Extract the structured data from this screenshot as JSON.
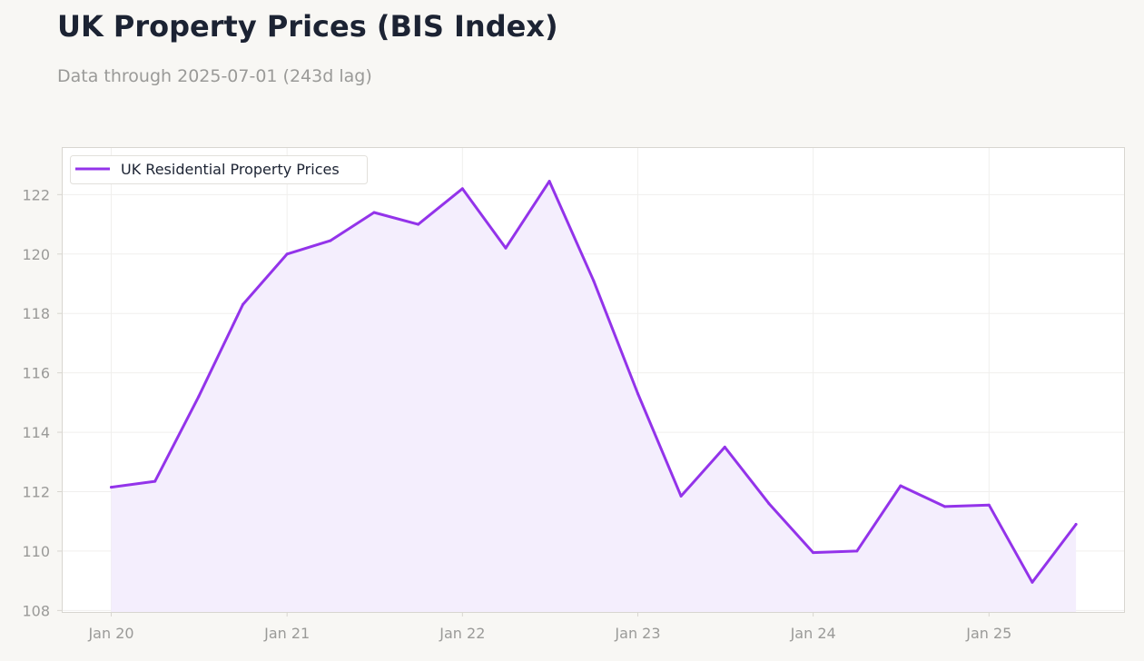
{
  "page": {
    "title": "UK Property Prices (BIS Index)",
    "subtitle": "Data through 2025-07-01 (243d lag)"
  },
  "chart_data": {
    "type": "area",
    "title": "UK Property Prices (BIS Index)",
    "subtitle": "Data through 2025-07-01 (243d lag)",
    "xlabel": "",
    "ylabel": "",
    "x": [
      "2020-01-01",
      "2020-04-01",
      "2020-07-01",
      "2020-10-01",
      "2021-01-01",
      "2021-04-01",
      "2021-07-01",
      "2021-10-01",
      "2022-01-01",
      "2022-04-01",
      "2022-07-01",
      "2022-10-01",
      "2023-01-01",
      "2023-04-01",
      "2023-07-01",
      "2023-10-01",
      "2024-01-01",
      "2024-04-01",
      "2024-07-01",
      "2024-10-01",
      "2025-01-01",
      "2025-04-01",
      "2025-07-01"
    ],
    "series": [
      {
        "name": "UK Residential Property Prices",
        "color": "#9333ea",
        "values": [
          112.15,
          112.35,
          115.2,
          118.3,
          120.0,
          120.45,
          121.4,
          121.0,
          122.2,
          120.2,
          122.45,
          119.1,
          115.3,
          111.85,
          113.5,
          111.6,
          109.95,
          110.0,
          112.2,
          111.5,
          111.55,
          108.95,
          110.9
        ]
      }
    ],
    "x_ticks": [
      {
        "date": "2020-01-01",
        "label": "Jan 20"
      },
      {
        "date": "2021-01-01",
        "label": "Jan 21"
      },
      {
        "date": "2022-01-01",
        "label": "Jan 22"
      },
      {
        "date": "2023-01-01",
        "label": "Jan 23"
      },
      {
        "date": "2024-01-01",
        "label": "Jan 24"
      },
      {
        "date": "2025-01-01",
        "label": "Jan 25"
      }
    ],
    "y_ticks": [
      108,
      110,
      112,
      114,
      116,
      118,
      120,
      122
    ],
    "xlim": [
      "2019-09-20",
      "2025-10-09"
    ],
    "ylim": [
      107.95,
      123.6
    ],
    "grid": true,
    "legend": "top-left",
    "fill_color": "#f4eefd",
    "axis_color": "#d8d6d0",
    "tick_color": "#9a9a98"
  }
}
